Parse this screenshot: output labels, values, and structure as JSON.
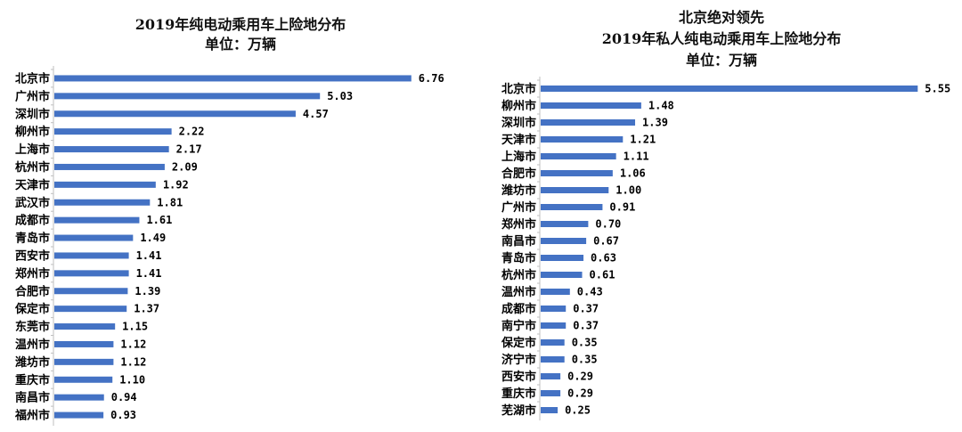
{
  "chart_data": [
    {
      "type": "bar",
      "orientation": "horizontal",
      "title": "2019年纯电动乘用车上险地分布",
      "subtitle": "单位：万辆",
      "bar_color": "#4472C4",
      "xlim": [
        0,
        7
      ],
      "categories": [
        "北京市",
        "广州市",
        "深圳市",
        "柳州市",
        "上海市",
        "杭州市",
        "天津市",
        "武汉市",
        "成都市",
        "青岛市",
        "西安市",
        "郑州市",
        "合肥市",
        "保定市",
        "东莞市",
        "温州市",
        "潍坊市",
        "重庆市",
        "南昌市",
        "福州市"
      ],
      "values": [
        6.76,
        5.03,
        4.57,
        2.22,
        2.17,
        2.09,
        1.92,
        1.81,
        1.61,
        1.49,
        1.41,
        1.41,
        1.39,
        1.37,
        1.15,
        1.12,
        1.12,
        1.1,
        0.94,
        0.93
      ],
      "value_labels": [
        "6.76",
        "5.03",
        "4.57",
        "2.22",
        "2.17",
        "2.09",
        "1.92",
        "1.81",
        "1.61",
        "1.49",
        "1.41",
        "1.41",
        "1.39",
        "1.37",
        "1.15",
        "1.12",
        "1.12",
        "1.10",
        "0.94",
        "0.93"
      ]
    },
    {
      "type": "bar",
      "orientation": "horizontal",
      "title": "北京绝对领先",
      "subtitle": "2019年私人纯电动乘用车上险地分布",
      "subtitle2": "单位：万辆",
      "bar_color": "#4472C4",
      "xlim": [
        0,
        5.9
      ],
      "categories": [
        "北京市",
        "柳州市",
        "深圳市",
        "天津市",
        "上海市",
        "合肥市",
        "潍坊市",
        "广州市",
        "郑州市",
        "南昌市",
        "青岛市",
        "杭州市",
        "温州市",
        "成都市",
        "南宁市",
        "保定市",
        "济宁市",
        "西安市",
        "重庆市",
        "芜湖市"
      ],
      "values": [
        5.55,
        1.48,
        1.39,
        1.21,
        1.11,
        1.06,
        1.0,
        0.91,
        0.7,
        0.67,
        0.63,
        0.61,
        0.43,
        0.37,
        0.37,
        0.35,
        0.35,
        0.29,
        0.29,
        0.25
      ],
      "value_labels": [
        "5.55",
        "1.48",
        "1.39",
        "1.21",
        "1.11",
        "1.06",
        "1.00",
        "0.91",
        "0.70",
        "0.67",
        "0.63",
        "0.61",
        "0.43",
        "0.37",
        "0.37",
        "0.35",
        "0.35",
        "0.29",
        "0.29",
        "0.25"
      ]
    }
  ]
}
